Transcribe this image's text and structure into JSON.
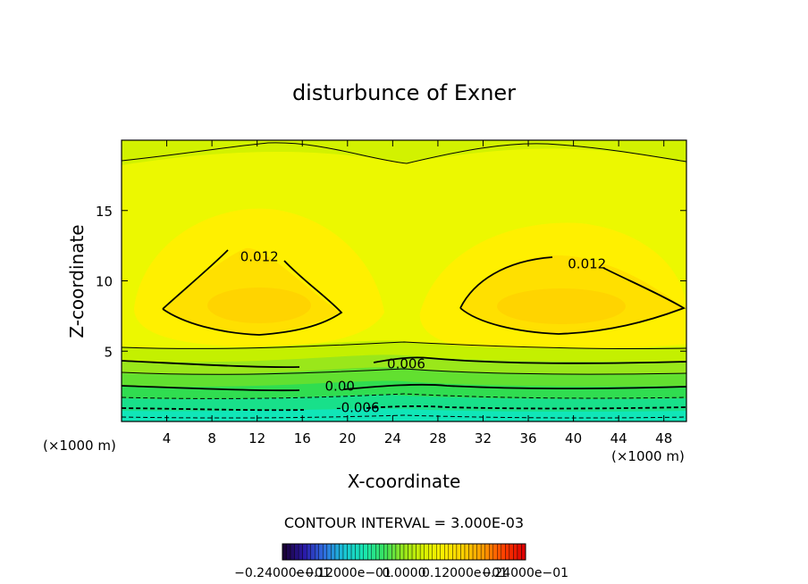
{
  "chart_data": {
    "type": "heatmap",
    "title": "disturbunce of Exner",
    "xlabel": "X-coordinate",
    "ylabel": "Z-coordinate",
    "x_unit_left": "(×1000 m)",
    "x_unit_right": "(×1000 m)",
    "xlim": [
      0,
      50
    ],
    "ylim": [
      0,
      20
    ],
    "xticks": [
      {
        "value": 4,
        "label": "4"
      },
      {
        "value": 8,
        "label": "8"
      },
      {
        "value": 12,
        "label": "12"
      },
      {
        "value": 16,
        "label": "16"
      },
      {
        "value": 20,
        "label": "20"
      },
      {
        "value": 24,
        "label": "24"
      },
      {
        "value": 28,
        "label": "28"
      },
      {
        "value": 32,
        "label": "32"
      },
      {
        "value": 36,
        "label": "36"
      },
      {
        "value": 40,
        "label": "40"
      },
      {
        "value": 44,
        "label": "44"
      },
      {
        "value": 48,
        "label": "48"
      }
    ],
    "yticks": [
      {
        "value": 5,
        "label": "5"
      },
      {
        "value": 10,
        "label": "10"
      },
      {
        "value": 15,
        "label": "15"
      }
    ],
    "contour_interval_text": "CONTOUR INTERVAL = 3.000E-03",
    "contour_labels": [
      {
        "text": "0.012",
        "x": 10.5,
        "z": 11.7
      },
      {
        "text": "0.012",
        "x": 39.5,
        "z": 11.2
      },
      {
        "text": "0.006",
        "x": 23.5,
        "z": 4.1
      },
      {
        "text": "0.00",
        "x": 18.0,
        "z": 2.5
      },
      {
        "text": "-0.006",
        "x": 19.0,
        "z": 1.0
      }
    ],
    "colorbar_labels": [
      {
        "text": "−0.24000e−01",
        "frac": 0.0
      },
      {
        "text": "−0.12000e−01",
        "frac": 0.25
      },
      {
        "text": "0.0000",
        "frac": 0.5
      },
      {
        "text": "0.12000e−01",
        "frac": 0.75
      },
      {
        "text": "0.24000e−01",
        "frac": 1.0
      }
    ],
    "colorbar_range": [
      -0.024,
      0.024
    ],
    "colormap": [
      "#1a0038",
      "#2a1aa8",
      "#2f6fe0",
      "#19c6d6",
      "#18e6b0",
      "#38e060",
      "#9ae71a",
      "#d8f000",
      "#ffee00",
      "#ffd000",
      "#ff9a00",
      "#ff4000",
      "#e00000"
    ]
  }
}
